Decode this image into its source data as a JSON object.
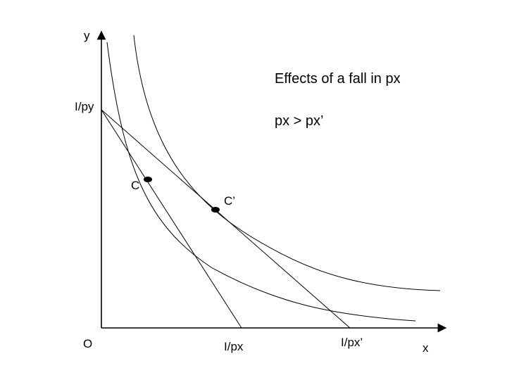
{
  "title": "Effects of a fall in px",
  "subtitle": "px > px’",
  "axes": {
    "y_label": "y",
    "x_label": "x",
    "origin_label": "O"
  },
  "intercepts": {
    "y_intercept": "I/py",
    "x_intercept_initial": "I/px",
    "x_intercept_new": "I/px’"
  },
  "points": {
    "initial": "C",
    "new": "C’"
  },
  "colors": {
    "line": "#000000",
    "background": "#ffffff"
  }
}
